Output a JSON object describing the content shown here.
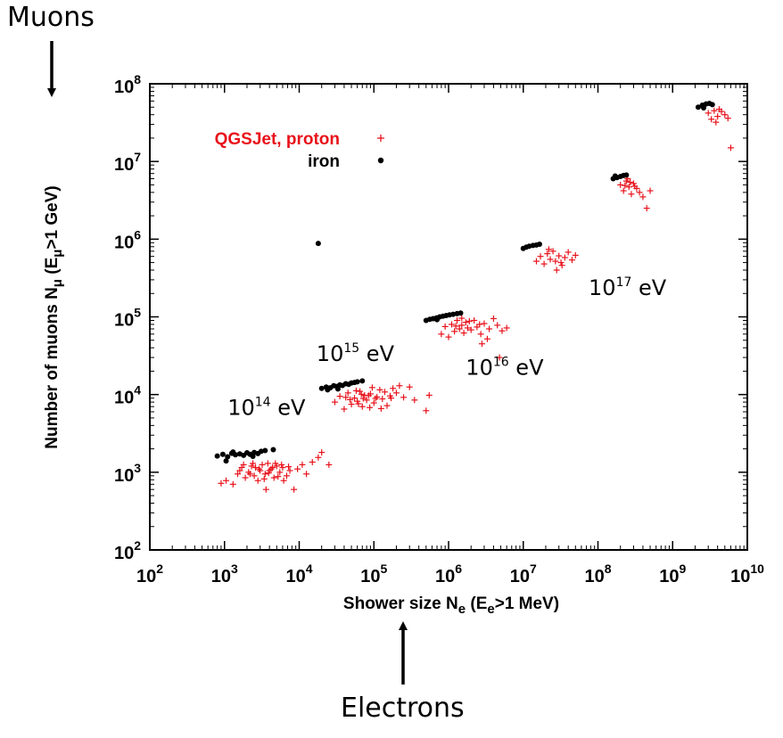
{
  "outer_labels": {
    "muons": "Muons",
    "electrons": "Electrons"
  },
  "chart_data": {
    "type": "scatter",
    "x_scale": "log",
    "y_scale": "log",
    "xlim": [
      100,
      10000000000
    ],
    "ylim": [
      100,
      100000000
    ],
    "xlabel": {
      "main": "Shower size N",
      "sub": "e",
      "rest_open": " (E",
      "rest_sub": "e",
      "rest_close": ">1 MeV)"
    },
    "ylabel": {
      "main": "Number of muons N",
      "sub": "μ",
      "rest_open": " (E",
      "rest_sub": "μ",
      "rest_close": ">1 GeV)"
    },
    "x_ticks": [
      {
        "base": "10",
        "exp": "2"
      },
      {
        "base": "10",
        "exp": "3"
      },
      {
        "base": "10",
        "exp": "4"
      },
      {
        "base": "10",
        "exp": "5"
      },
      {
        "base": "10",
        "exp": "6"
      },
      {
        "base": "10",
        "exp": "7"
      },
      {
        "base": "10",
        "exp": "8"
      },
      {
        "base": "10",
        "exp": "9"
      },
      {
        "base": "10",
        "exp": "10"
      }
    ],
    "y_ticks": [
      {
        "base": "10",
        "exp": "2"
      },
      {
        "base": "10",
        "exp": "3"
      },
      {
        "base": "10",
        "exp": "4"
      },
      {
        "base": "10",
        "exp": "5"
      },
      {
        "base": "10",
        "exp": "6"
      },
      {
        "base": "10",
        "exp": "7"
      },
      {
        "base": "10",
        "exp": "8"
      }
    ],
    "legend": {
      "placement": "top-left",
      "entries": [
        {
          "label": "QGSJet, proton",
          "marker": "plus",
          "color": "#e8121b"
        },
        {
          "label": "iron",
          "marker": "dot",
          "color": "#000000"
        }
      ]
    },
    "annotations": [
      {
        "base": "10",
        "exp": "14",
        "unit": " eV",
        "x": 1100,
        "y": 5500
      },
      {
        "base": "10",
        "exp": "15",
        "unit": " eV",
        "x": 17000,
        "y": 27000
      },
      {
        "base": "10",
        "exp": "16",
        "unit": " eV",
        "x": 1700000,
        "y": 18000
      },
      {
        "base": "10",
        "exp": "17",
        "unit": " eV",
        "x": 75000000,
        "y": 190000
      }
    ],
    "series": [
      {
        "name": "QGSJet, proton",
        "color": "#e8121b",
        "marker": "plus",
        "points": [
          [
            900,
            720
          ],
          [
            1050,
            780
          ],
          [
            1300,
            700
          ],
          [
            1500,
            950
          ],
          [
            1700,
            1150
          ],
          [
            1900,
            850
          ],
          [
            2100,
            1000
          ],
          [
            2300,
            1200
          ],
          [
            2500,
            900
          ],
          [
            2800,
            780
          ],
          [
            3000,
            1050
          ],
          [
            3200,
            1250
          ],
          [
            3500,
            950
          ],
          [
            3800,
            1300
          ],
          [
            4200,
            1100
          ],
          [
            4600,
            850
          ],
          [
            5000,
            1200
          ],
          [
            5500,
            1000
          ],
          [
            6000,
            1150
          ],
          [
            6800,
            900
          ],
          [
            7500,
            1050
          ],
          [
            8500,
            600
          ],
          [
            9500,
            1100
          ],
          [
            11000,
            1250
          ],
          [
            12500,
            950
          ],
          [
            15000,
            1350
          ],
          [
            18000,
            1550
          ],
          [
            20000,
            1800
          ],
          [
            25000,
            1250
          ],
          [
            1800,
            1250
          ],
          [
            2600,
            1150
          ],
          [
            3400,
            820
          ],
          [
            4000,
            1050
          ],
          [
            4800,
            1300
          ],
          [
            6200,
            780
          ],
          [
            2200,
            950
          ],
          [
            2900,
            1100
          ],
          [
            3900,
            980
          ],
          [
            5200,
            880
          ],
          [
            7200,
            1180
          ],
          [
            1600,
            1050
          ],
          [
            3600,
            600
          ],
          [
            4400,
            1150
          ],
          [
            2400,
            1300
          ],
          [
            5800,
            1250
          ],
          [
            30000,
            8000
          ],
          [
            35000,
            9500
          ],
          [
            40000,
            6500
          ],
          [
            45000,
            10500
          ],
          [
            50000,
            7500
          ],
          [
            55000,
            9000
          ],
          [
            60000,
            8200
          ],
          [
            65000,
            11000
          ],
          [
            70000,
            7000
          ],
          [
            75000,
            9800
          ],
          [
            80000,
            8500
          ],
          [
            90000,
            10200
          ],
          [
            100000,
            7800
          ],
          [
            110000,
            9300
          ],
          [
            120000,
            11500
          ],
          [
            130000,
            8800
          ],
          [
            140000,
            10800
          ],
          [
            150000,
            7200
          ],
          [
            165000,
            9600
          ],
          [
            180000,
            12000
          ],
          [
            200000,
            10500
          ],
          [
            220000,
            13000
          ],
          [
            250000,
            9200
          ],
          [
            300000,
            12500
          ],
          [
            350000,
            8500
          ],
          [
            500000,
            6200
          ],
          [
            550000,
            9800
          ],
          [
            42000,
            9200
          ],
          [
            58000,
            11200
          ],
          [
            72000,
            8900
          ],
          [
            88000,
            6800
          ],
          [
            95000,
            12300
          ],
          [
            68000,
            10100
          ],
          [
            48000,
            8600
          ],
          [
            125000,
            6600
          ],
          [
            170000,
            9000
          ],
          [
            62000,
            7600
          ],
          [
            105000,
            8900
          ],
          [
            85000,
            9700
          ],
          [
            800000,
            60000
          ],
          [
            900000,
            75000
          ],
          [
            1000000,
            55000
          ],
          [
            1100000,
            80000
          ],
          [
            1200000,
            65000
          ],
          [
            1300000,
            90000
          ],
          [
            1400000,
            70000
          ],
          [
            1500000,
            78000
          ],
          [
            1600000,
            62000
          ],
          [
            1700000,
            85000
          ],
          [
            1800000,
            72000
          ],
          [
            2000000,
            68000
          ],
          [
            2200000,
            90000
          ],
          [
            2400000,
            74000
          ],
          [
            2700000,
            60000
          ],
          [
            3000000,
            82000
          ],
          [
            3500000,
            70000
          ],
          [
            4000000,
            95000
          ],
          [
            4500000,
            78000
          ],
          [
            5200000,
            66000
          ],
          [
            6000000,
            72000
          ],
          [
            2800000,
            45000
          ],
          [
            4800000,
            30000
          ],
          [
            1900000,
            88000
          ],
          [
            1250000,
            76000
          ],
          [
            3300000,
            52000
          ],
          [
            2600000,
            80000
          ],
          [
            1500000,
            96000
          ],
          [
            15000000,
            520000
          ],
          [
            17000000,
            600000
          ],
          [
            19000000,
            480000
          ],
          [
            21000000,
            650000
          ],
          [
            23000000,
            550000
          ],
          [
            25000000,
            700000
          ],
          [
            27000000,
            520000
          ],
          [
            30000000,
            610000
          ],
          [
            33000000,
            460000
          ],
          [
            36000000,
            580000
          ],
          [
            40000000,
            680000
          ],
          [
            45000000,
            540000
          ],
          [
            50000000,
            620000
          ],
          [
            28000000,
            400000
          ],
          [
            22000000,
            740000
          ],
          [
            32000000,
            500000
          ],
          [
            200000000,
            5000000
          ],
          [
            220000000,
            4200000
          ],
          [
            240000000,
            5600000
          ],
          [
            260000000,
            4700000
          ],
          [
            280000000,
            3800000
          ],
          [
            300000000,
            5200000
          ],
          [
            330000000,
            4500000
          ],
          [
            360000000,
            4000000
          ],
          [
            400000000,
            3500000
          ],
          [
            450000000,
            2500000
          ],
          [
            500000000,
            4200000
          ],
          [
            250000000,
            6000000
          ],
          [
            310000000,
            4800000
          ],
          [
            270000000,
            5400000
          ],
          [
            230000000,
            4900000
          ],
          [
            3000000000,
            42000000
          ],
          [
            3300000000,
            35000000
          ],
          [
            3600000000,
            45000000
          ],
          [
            4000000000,
            38000000
          ],
          [
            4500000000,
            44000000
          ],
          [
            5000000000,
            40000000
          ],
          [
            5500000000,
            36000000
          ],
          [
            6000000000,
            15000000
          ],
          [
            3800000000,
            32000000
          ],
          [
            4200000000,
            47000000
          ]
        ]
      },
      {
        "name": "iron",
        "color": "#000000",
        "marker": "dot",
        "points": [
          [
            800,
            1620
          ],
          [
            950,
            1700
          ],
          [
            1100,
            1580
          ],
          [
            1250,
            1750
          ],
          [
            1400,
            1680
          ],
          [
            1600,
            1720
          ],
          [
            1800,
            1650
          ],
          [
            2000,
            1780
          ],
          [
            2200,
            1700
          ],
          [
            2500,
            1800
          ],
          [
            2800,
            1740
          ],
          [
            3100,
            1860
          ],
          [
            3500,
            1900
          ],
          [
            4500,
            1950
          ],
          [
            1050,
            1400
          ],
          [
            1300,
            1820
          ],
          [
            2400,
            1600
          ],
          [
            20000,
            12000
          ],
          [
            23000,
            12500
          ],
          [
            26000,
            12200
          ],
          [
            29000,
            13000
          ],
          [
            32000,
            12700
          ],
          [
            35000,
            13300
          ],
          [
            38000,
            13100
          ],
          [
            42000,
            13800
          ],
          [
            46000,
            13500
          ],
          [
            50000,
            14100
          ],
          [
            55000,
            14300
          ],
          [
            60000,
            14600
          ],
          [
            70000,
            15000
          ],
          [
            24000,
            11500
          ],
          [
            33000,
            11800
          ],
          [
            500000,
            90000
          ],
          [
            560000,
            93000
          ],
          [
            620000,
            95000
          ],
          [
            690000,
            97000
          ],
          [
            760000,
            100000
          ],
          [
            840000,
            102000
          ],
          [
            930000,
            104000
          ],
          [
            1030000,
            106000
          ],
          [
            1150000,
            108000
          ],
          [
            1300000,
            110000
          ],
          [
            1450000,
            112000
          ],
          [
            700000,
            92000
          ],
          [
            10000000,
            760000
          ],
          [
            11000000,
            790000
          ],
          [
            12000000,
            810000
          ],
          [
            13500000,
            830000
          ],
          [
            15000000,
            840000
          ],
          [
            16500000,
            860000
          ],
          [
            18000,
            880000
          ],
          [
            160000000,
            6000000
          ],
          [
            180000000,
            6200000
          ],
          [
            200000000,
            6400000
          ],
          [
            220000000,
            6600000
          ],
          [
            240000000,
            6700000
          ],
          [
            170000000,
            6500000
          ],
          [
            2200000000,
            50000000
          ],
          [
            2500000000,
            53000000
          ],
          [
            2800000000,
            55000000
          ],
          [
            3100000000,
            56000000
          ],
          [
            3400000000,
            54000000
          ],
          [
            2600000000,
            49000000
          ]
        ]
      }
    ]
  }
}
